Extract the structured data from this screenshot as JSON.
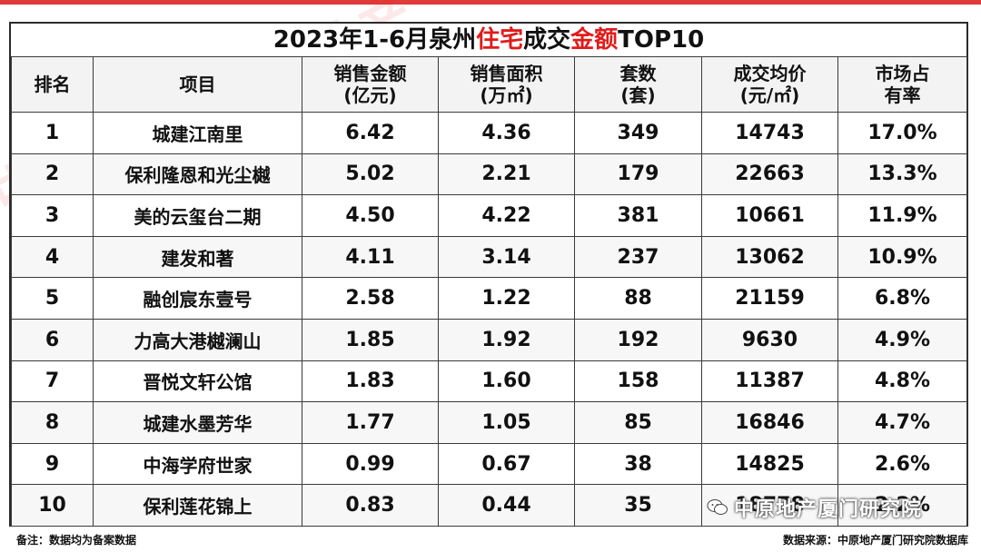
{
  "title": {
    "prefix": "2023年1-6月泉州",
    "red1": "住宅",
    "mid": "成交",
    "red2": "金额",
    "suffix": "TOP10"
  },
  "columns": [
    {
      "line1": "排名",
      "line2": ""
    },
    {
      "line1": "项目",
      "line2": ""
    },
    {
      "line1": "销售金额",
      "line2": "(亿元)"
    },
    {
      "line1": "销售面积",
      "line2": "(万㎡)"
    },
    {
      "line1": "套数",
      "line2": "(套)"
    },
    {
      "line1": "成交均价",
      "line2": "(元/㎡)"
    },
    {
      "line1": "市场占",
      "line2": "有率"
    }
  ],
  "rows": [
    [
      "1",
      "城建江南里",
      "6.42",
      "4.36",
      "349",
      "14743",
      "17.0%"
    ],
    [
      "2",
      "保利隆恩和光尘樾",
      "5.02",
      "2.21",
      "179",
      "22663",
      "13.3%"
    ],
    [
      "3",
      "美的云玺台二期",
      "4.50",
      "4.22",
      "381",
      "10661",
      "11.9%"
    ],
    [
      "4",
      "建发和著",
      "4.11",
      "3.14",
      "237",
      "13062",
      "10.9%"
    ],
    [
      "5",
      "融创宸东壹号",
      "2.58",
      "1.22",
      "88",
      "21159",
      "6.8%"
    ],
    [
      "6",
      "力高大港樾澜山",
      "1.85",
      "1.92",
      "192",
      "9630",
      "4.9%"
    ],
    [
      "7",
      "晋悦文轩公馆",
      "1.83",
      "1.60",
      "158",
      "11387",
      "4.8%"
    ],
    [
      "8",
      "城建水墨芳华",
      "1.77",
      "1.05",
      "85",
      "16846",
      "4.7%"
    ],
    [
      "9",
      "中海学府世家",
      "0.99",
      "0.67",
      "38",
      "14825",
      "2.6%"
    ],
    [
      "10",
      "保利莲花锦上",
      "0.83",
      "0.44",
      "35",
      "18778",
      "2.2%"
    ]
  ],
  "footer": {
    "note": "备注：数据均为备案数据",
    "source": "数据来源：中原地产厦门研究院数据库"
  },
  "watermark": {
    "brand": "中原地产",
    "english": "CENTALINE PROPERTY"
  },
  "wechat_tag": "中原地产厦门研究院",
  "colors": {
    "accent_red": "#e11b1b",
    "border": "#3a3a3a"
  }
}
